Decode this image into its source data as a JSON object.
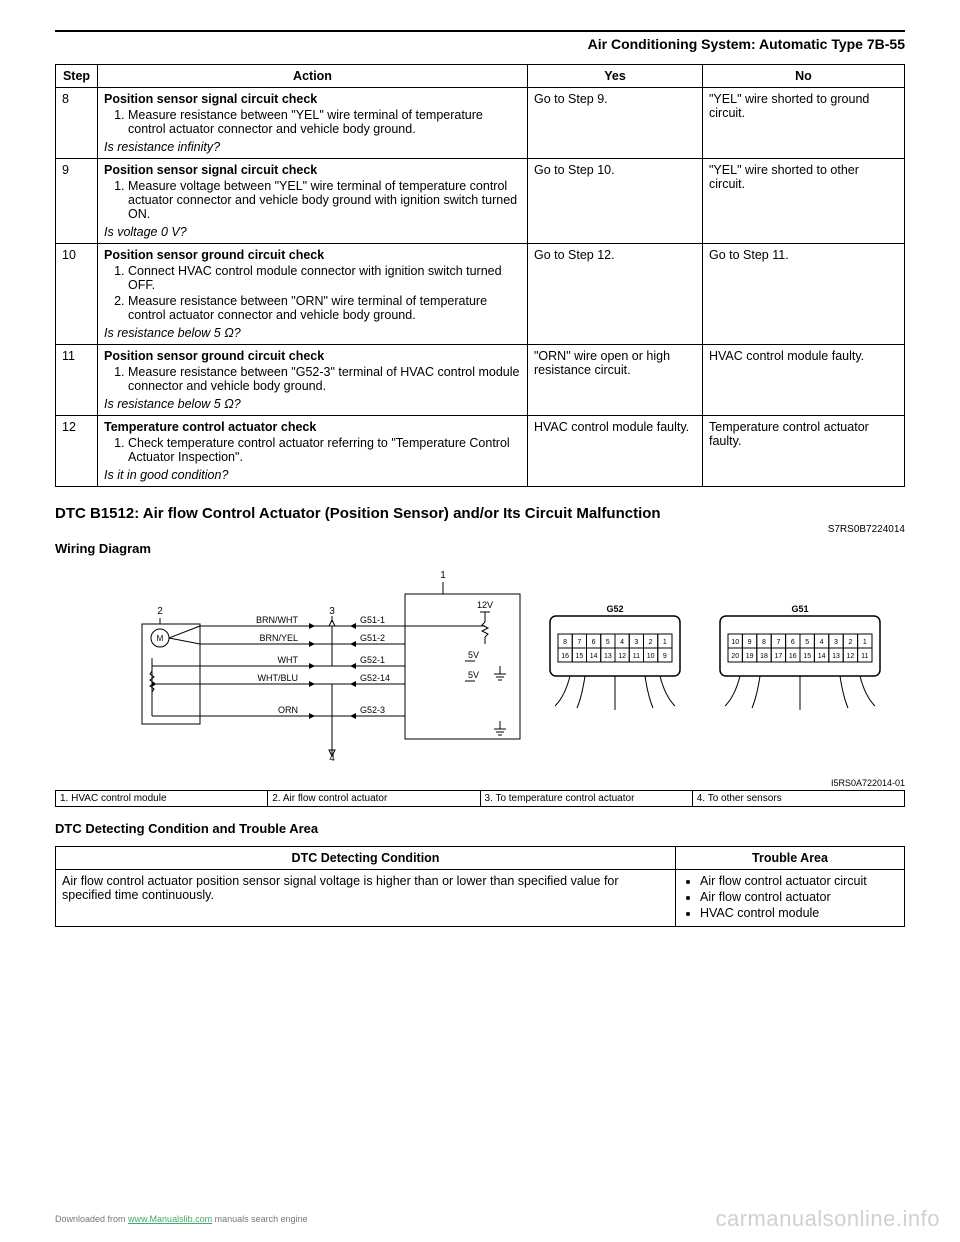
{
  "header": {
    "title": "Air Conditioning System: Automatic Type   7B-55"
  },
  "diag_table": {
    "headers": [
      "Step",
      "Action",
      "Yes",
      "No"
    ],
    "rows": [
      {
        "step": "8",
        "action_title": "Position sensor signal circuit check",
        "action_items": [
          "Measure resistance between \"YEL\" wire terminal of temperature control actuator connector and vehicle body ground."
        ],
        "question": "Is resistance infinity?",
        "yes": "Go to Step 9.",
        "no": "\"YEL\" wire shorted to ground circuit."
      },
      {
        "step": "9",
        "action_title": "Position sensor signal circuit check",
        "action_items": [
          "Measure voltage between \"YEL\" wire terminal of temperature control actuator connector and vehicle body ground with ignition switch turned ON."
        ],
        "question": "Is voltage 0 V?",
        "yes": "Go to Step 10.",
        "no": "\"YEL\" wire shorted to other circuit."
      },
      {
        "step": "10",
        "action_title": "Position sensor ground circuit check",
        "action_items": [
          "Connect HVAC control module connector with ignition switch turned OFF.",
          "Measure resistance between \"ORN\" wire terminal of temperature control actuator connector and vehicle body ground."
        ],
        "question": "Is resistance below 5 Ω?",
        "yes": "Go to Step 12.",
        "no": "Go to Step 11."
      },
      {
        "step": "11",
        "action_title": "Position sensor ground circuit check",
        "action_items": [
          "Measure resistance between \"G52-3\" terminal of HVAC control module connector and vehicle body ground."
        ],
        "question": "Is resistance below 5 Ω?",
        "yes": "\"ORN\" wire open or high resistance circuit.",
        "no": "HVAC control module faulty."
      },
      {
        "step": "12",
        "action_title": "Temperature control actuator check",
        "action_items": [
          "Check temperature control actuator referring to \"Temperature Control Actuator Inspection\"."
        ],
        "question": "Is it in good condition?",
        "yes": "HVAC control module faulty.",
        "no": "Temperature control actuator faulty."
      }
    ]
  },
  "dtc_section": {
    "title": "DTC B1512: Air flow Control Actuator (Position Sensor) and/or Its Circuit Malfunction",
    "doc_id": "S7RS0B7224014",
    "wiring_title": "Wiring Diagram",
    "diagram_id": "I5RS0A722014-01",
    "legend": [
      {
        "num": "1.",
        "text": "HVAC control module"
      },
      {
        "num": "2.",
        "text": "Air flow control actuator"
      },
      {
        "num": "3.",
        "text": "To temperature control actuator"
      },
      {
        "num": "4.",
        "text": "To other sensors"
      }
    ],
    "wires": [
      "BRN/WHT",
      "BRN/YEL",
      "WHT",
      "WHT/BLU",
      "ORN"
    ],
    "pins": [
      "G51-1",
      "G51-2",
      "G52-1",
      "G52-14",
      "G52-3"
    ],
    "voltage_labels": [
      "12V",
      "5V",
      "5V"
    ],
    "connectors": {
      "g52": {
        "label": "G52",
        "top": [
          "8",
          "7",
          "6",
          "5",
          "4",
          "3",
          "2",
          "1"
        ],
        "bottom": [
          "16",
          "15",
          "14",
          "13",
          "12",
          "11",
          "10",
          "9"
        ]
      },
      "g51": {
        "label": "G51",
        "top": [
          "10",
          "9",
          "8",
          "7",
          "6",
          "5",
          "4",
          "3",
          "2",
          "1"
        ],
        "bottom": [
          "20",
          "19",
          "18",
          "17",
          "16",
          "15",
          "14",
          "13",
          "12",
          "11"
        ]
      }
    },
    "callouts": [
      "1",
      "2",
      "3",
      "4"
    ],
    "cond_title": "DTC Detecting Condition and Trouble Area",
    "cond_headers": [
      "DTC Detecting Condition",
      "Trouble Area"
    ],
    "cond_text": "Air flow control actuator position sensor signal voltage is higher than or lower than specified value for specified time continuously.",
    "trouble_items": [
      "Air flow control actuator circuit",
      "Air flow control actuator",
      "HVAC control module"
    ]
  },
  "footer": {
    "text_pre": "Downloaded from ",
    "link": "www.Manualslib.com",
    "text_post": " manuals search engine"
  },
  "watermark": "carmanualsonline.info",
  "colors": {
    "text": "#000000",
    "bg": "#ffffff",
    "border": "#000000",
    "footer": "#777777",
    "link": "#44aa66",
    "watermark": "#d0d0d0"
  }
}
